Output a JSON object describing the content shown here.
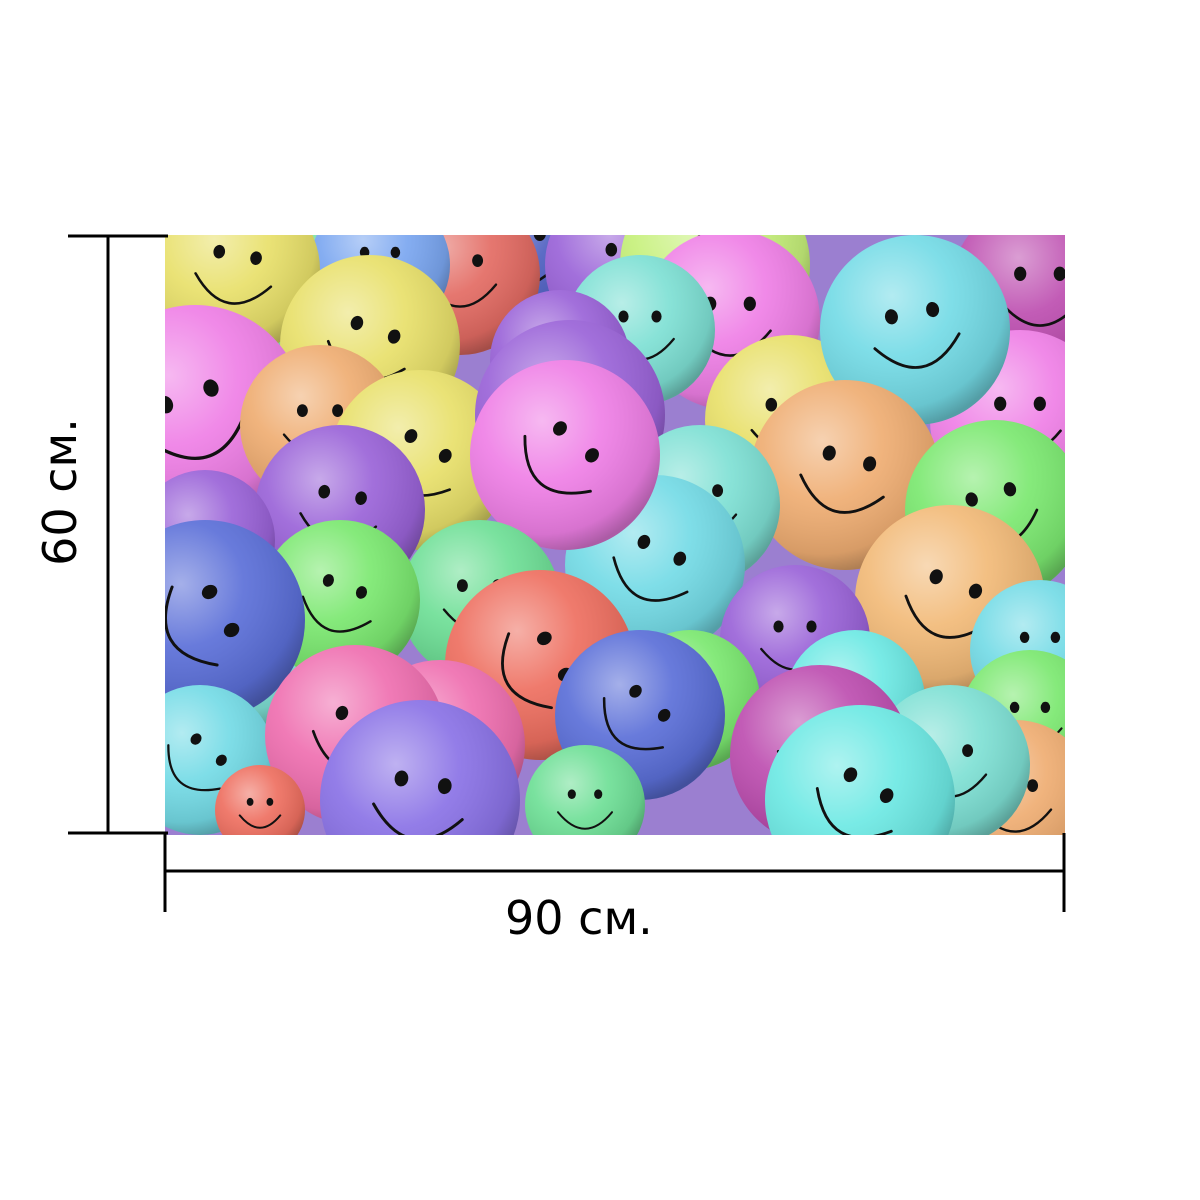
{
  "dimensions": {
    "width_label": "90 см.",
    "height_label": "60 см."
  },
  "image": {
    "subject": "smiley-balls",
    "ball_colors": [
      "#e8e06a",
      "#7aa6f0",
      "#e36b63",
      "#4e5fc0",
      "#c6f07a",
      "#ea80e8",
      "#74dbe6",
      "#ef7fe6",
      "#efad72",
      "#7be870",
      "#f2ba78",
      "#9a63d8",
      "#5b6fd8",
      "#6edf96",
      "#ee6f60",
      "#ef6fb0",
      "#8a72e6",
      "#6de9e4",
      "#bd4eb0",
      "#7ee0d4"
    ]
  },
  "colors": {
    "background": "#ffffff",
    "dimension_lines": "#000000",
    "smile": "#111111"
  }
}
